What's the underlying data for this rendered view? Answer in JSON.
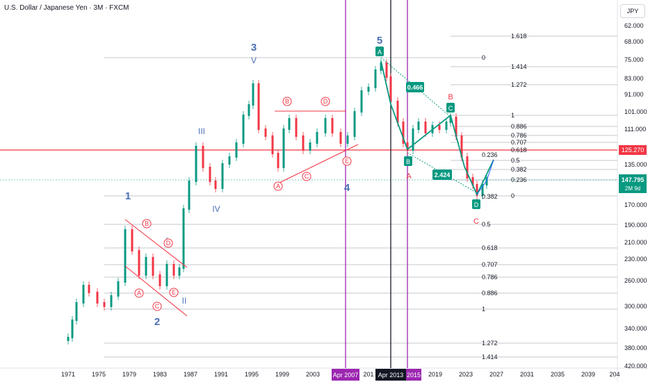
{
  "title": "U.S. Dollar / Japanese Yen · 3M · FXCM",
  "currency_button": "JPY",
  "current_price": "147.795",
  "current_countdown": "2M 9d",
  "hline_price": "125.270",
  "markers": {
    "apr2007": "Apr 2007",
    "apr2013": "Apr 2013",
    "y2015": "2015"
  },
  "colors": {
    "up": "#089981",
    "down": "#f23645",
    "wave": "#4a6fb5",
    "purple": "#9c27b0",
    "red": "#f23645",
    "teal": "#089981"
  },
  "chart_data": {
    "type": "candlestick",
    "y_scale": "log-inverted (JPY per USD, axis inverted)",
    "y_ticks": [
      "62.000",
      "68.000",
      "75.000",
      "83.000",
      "91.000",
      "101.000",
      "111.000",
      "135.000",
      "170.000",
      "190.000",
      "210.000",
      "230.000",
      "260.000",
      "300.000",
      "340.000",
      "380.000",
      "420.000"
    ],
    "x_ticks": [
      "1971",
      "1975",
      "1979",
      "1983",
      "1987",
      "1991",
      "1995",
      "1999",
      "2003",
      "201",
      "2019",
      "2023",
      "2027",
      "2031",
      "2035",
      "2039",
      "204"
    ],
    "fib_levels_upper": [
      "1.618",
      "0",
      "1.414",
      "1.272",
      "1",
      "0.886",
      "0.786",
      "0.707",
      "0.618",
      "0.5",
      "0.382",
      "0.236",
      "0"
    ],
    "fib_levels_lower": [
      "0.382",
      "0.5",
      "0.618",
      "0.707",
      "0.786",
      "0.886",
      "1",
      "1.272",
      "1.414"
    ],
    "fib_levels_right_small": [
      "0.236",
      "0.382"
    ],
    "wave_labels": [
      "1",
      "2",
      "3",
      "4",
      "5",
      "II",
      "III",
      "IV",
      "V"
    ],
    "subwave_labels": [
      "A",
      "B",
      "C",
      "D",
      "E"
    ],
    "corrective_labels": [
      "A",
      "B",
      "C",
      "D"
    ],
    "ratio_labels": [
      "0.466",
      "2.424"
    ]
  }
}
